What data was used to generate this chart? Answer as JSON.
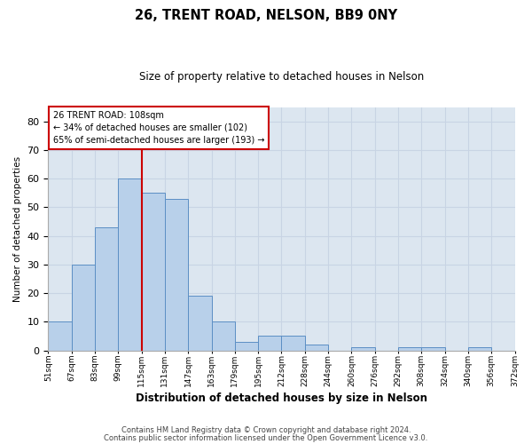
{
  "title": "26, TRENT ROAD, NELSON, BB9 0NY",
  "subtitle": "Size of property relative to detached houses in Nelson",
  "xlabel": "Distribution of detached houses by size in Nelson",
  "ylabel": "Number of detached properties",
  "bar_values": [
    10,
    30,
    43,
    60,
    55,
    53,
    19,
    10,
    3,
    5,
    5,
    2,
    0,
    1,
    0,
    1,
    1,
    0,
    1,
    0
  ],
  "x_labels": [
    "51sqm",
    "67sqm",
    "83sqm",
    "99sqm",
    "115sqm",
    "131sqm",
    "147sqm",
    "163sqm",
    "179sqm",
    "195sqm",
    "212sqm",
    "228sqm",
    "244sqm",
    "260sqm",
    "276sqm",
    "292sqm",
    "308sqm",
    "324sqm",
    "340sqm",
    "356sqm",
    "372sqm"
  ],
  "bar_color": "#b8d0ea",
  "bar_edge_color": "#5b8ec4",
  "grid_color": "#c8d4e4",
  "background_color": "#dce6f0",
  "vline_x": 3,
  "vline_color": "#cc0000",
  "ylim": [
    0,
    85
  ],
  "yticks": [
    0,
    10,
    20,
    30,
    40,
    50,
    60,
    70,
    80
  ],
  "annotation_title": "26 TRENT ROAD: 108sqm",
  "annotation_line1": "← 34% of detached houses are smaller (102)",
  "annotation_line2": "65% of semi-detached houses are larger (193) →",
  "annotation_box_color": "#ffffff",
  "annotation_edge_color": "#cc0000",
  "footer_line1": "Contains HM Land Registry data © Crown copyright and database right 2024.",
  "footer_line2": "Contains public sector information licensed under the Open Government Licence v3.0.",
  "bar_width": 1.0,
  "figsize": [
    6.0,
    5.0
  ],
  "dpi": 100
}
